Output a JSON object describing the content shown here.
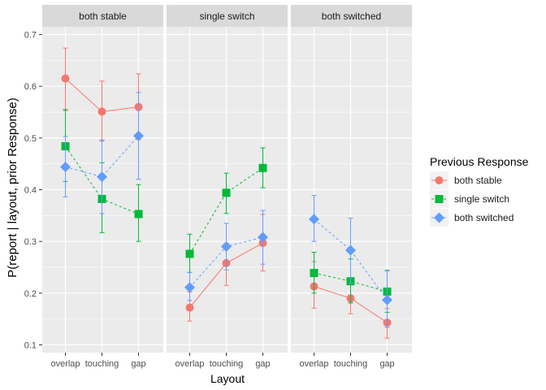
{
  "chart_data": {
    "type": "line",
    "facets": [
      "both stable",
      "single switch",
      "both switched"
    ],
    "categories": [
      "overlap",
      "touching",
      "gap"
    ],
    "xlabel": "Layout",
    "ylabel": "P(report | layout, prior Response)",
    "ylim": [
      0.085,
      0.715
    ],
    "yticks": [
      "0.1",
      "0.2",
      "0.3",
      "0.4",
      "0.5",
      "0.6",
      "0.7"
    ],
    "grid": true,
    "legend": {
      "title": "Previous Response",
      "placement": "right",
      "entries": [
        "both stable",
        "single switch",
        "both switched"
      ]
    },
    "series": [
      {
        "name": "both stable",
        "color": "#F8766D",
        "marker": "circle",
        "linestyle": "solid",
        "panels": [
          {
            "y": [
              0.615,
              0.551,
              0.56
            ],
            "lo": [
              0.553,
              0.494,
              0.497
            ],
            "hi": [
              0.674,
              0.61,
              0.624
            ]
          },
          {
            "y": [
              0.172,
              0.258,
              0.297
            ],
            "lo": [
              0.146,
              0.215,
              0.243
            ],
            "hi": [
              0.202,
              0.296,
              0.352
            ]
          },
          {
            "y": [
              0.213,
              0.19,
              0.143
            ],
            "lo": [
              0.171,
              0.16,
              0.113
            ],
            "hi": [
              0.261,
              0.224,
              0.17
            ]
          }
        ]
      },
      {
        "name": "single switch",
        "color": "#00BA38",
        "marker": "square",
        "linestyle": "dashed",
        "panels": [
          {
            "y": [
              0.484,
              0.382,
              0.353
            ],
            "lo": [
              0.416,
              0.317,
              0.3
            ],
            "hi": [
              0.555,
              0.452,
              0.41
            ]
          },
          {
            "y": [
              0.276,
              0.394,
              0.442
            ],
            "lo": [
              0.24,
              0.354,
              0.404
            ],
            "hi": [
              0.314,
              0.432,
              0.481
            ]
          },
          {
            "y": [
              0.239,
              0.223,
              0.203
            ],
            "lo": [
              0.2,
              0.181,
              0.163
            ],
            "hi": [
              0.279,
              0.266,
              0.244
            ]
          }
        ]
      },
      {
        "name": "both switched",
        "color": "#619CFF",
        "marker": "diamond",
        "linestyle": "dashed",
        "panels": [
          {
            "y": [
              0.444,
              0.425,
              0.504
            ],
            "lo": [
              0.386,
              0.354,
              0.42
            ],
            "hi": [
              0.503,
              0.496,
              0.588
            ]
          },
          {
            "y": [
              0.211,
              0.29,
              0.308
            ],
            "lo": [
              0.186,
              0.245,
              0.256
            ],
            "hi": [
              0.24,
              0.335,
              0.36
            ]
          },
          {
            "y": [
              0.343,
              0.283,
              0.187
            ],
            "lo": [
              0.3,
              0.219,
              0.134
            ],
            "hi": [
              0.389,
              0.345,
              0.243
            ]
          }
        ]
      }
    ]
  }
}
